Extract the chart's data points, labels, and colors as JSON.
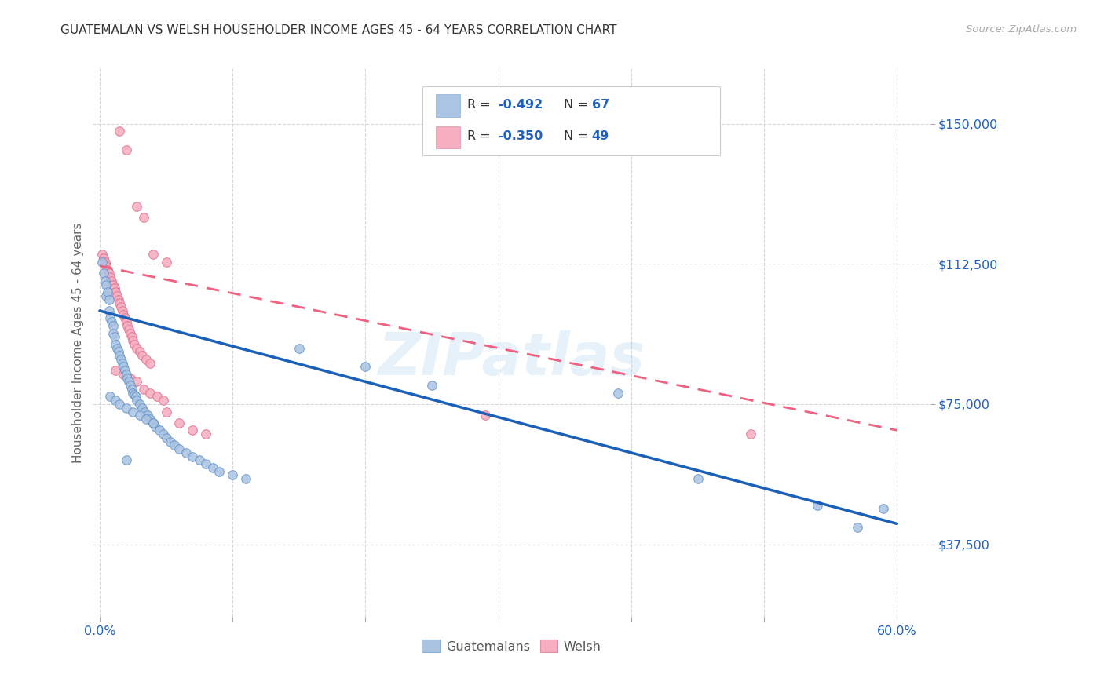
{
  "title": "GUATEMALAN VS WELSH HOUSEHOLDER INCOME AGES 45 - 64 YEARS CORRELATION CHART",
  "source": "Source: ZipAtlas.com",
  "ylabel": "Householder Income Ages 45 - 64 years",
  "ytick_labels": [
    "$37,500",
    "$75,000",
    "$112,500",
    "$150,000"
  ],
  "ytick_values": [
    37500,
    75000,
    112500,
    150000
  ],
  "ymin": 18000,
  "ymax": 165000,
  "xmin": -0.005,
  "xmax": 0.625,
  "watermark": "ZIPatlas",
  "guatemalan_color": "#aac4e2",
  "welsh_color": "#f5afc0",
  "guatemalan_line_color": "#1a5fb8",
  "welsh_line_color": "#f06080",
  "blue_accent": "#2060c0",
  "legend_r1_val": "-0.492",
  "legend_n1_val": "67",
  "legend_r2_val": "-0.350",
  "legend_n2_val": "49",
  "guatemalan_scatter": [
    [
      0.002,
      113000
    ],
    [
      0.003,
      110000
    ],
    [
      0.004,
      108000
    ],
    [
      0.005,
      107000
    ],
    [
      0.005,
      104000
    ],
    [
      0.006,
      105000
    ],
    [
      0.007,
      103000
    ],
    [
      0.007,
      100000
    ],
    [
      0.008,
      98000
    ],
    [
      0.009,
      97000
    ],
    [
      0.01,
      96000
    ],
    [
      0.01,
      94000
    ],
    [
      0.011,
      93000
    ],
    [
      0.012,
      91000
    ],
    [
      0.013,
      90000
    ],
    [
      0.014,
      89000
    ],
    [
      0.015,
      88000
    ],
    [
      0.016,
      87000
    ],
    [
      0.017,
      86000
    ],
    [
      0.018,
      85000
    ],
    [
      0.019,
      84000
    ],
    [
      0.02,
      83000
    ],
    [
      0.021,
      82000
    ],
    [
      0.022,
      81000
    ],
    [
      0.023,
      80000
    ],
    [
      0.024,
      79000
    ],
    [
      0.025,
      78000
    ],
    [
      0.026,
      77500
    ],
    [
      0.027,
      77000
    ],
    [
      0.028,
      76000
    ],
    [
      0.03,
      75000
    ],
    [
      0.032,
      74000
    ],
    [
      0.034,
      73000
    ],
    [
      0.036,
      72000
    ],
    [
      0.038,
      71000
    ],
    [
      0.04,
      70000
    ],
    [
      0.042,
      69000
    ],
    [
      0.045,
      68000
    ],
    [
      0.048,
      67000
    ],
    [
      0.05,
      66000
    ],
    [
      0.053,
      65000
    ],
    [
      0.056,
      64000
    ],
    [
      0.06,
      63000
    ],
    [
      0.065,
      62000
    ],
    [
      0.07,
      61000
    ],
    [
      0.075,
      60000
    ],
    [
      0.08,
      59000
    ],
    [
      0.085,
      58000
    ],
    [
      0.09,
      57000
    ],
    [
      0.1,
      56000
    ],
    [
      0.11,
      55000
    ],
    [
      0.008,
      77000
    ],
    [
      0.012,
      76000
    ],
    [
      0.015,
      75000
    ],
    [
      0.02,
      74000
    ],
    [
      0.025,
      73000
    ],
    [
      0.03,
      72000
    ],
    [
      0.035,
      71000
    ],
    [
      0.04,
      70000
    ],
    [
      0.15,
      90000
    ],
    [
      0.2,
      85000
    ],
    [
      0.25,
      80000
    ],
    [
      0.39,
      78000
    ],
    [
      0.45,
      55000
    ],
    [
      0.54,
      48000
    ],
    [
      0.57,
      42000
    ],
    [
      0.59,
      47000
    ],
    [
      0.02,
      60000
    ]
  ],
  "welsh_scatter": [
    [
      0.002,
      115000
    ],
    [
      0.003,
      114000
    ],
    [
      0.004,
      113000
    ],
    [
      0.005,
      112000
    ],
    [
      0.006,
      111000
    ],
    [
      0.007,
      110000
    ],
    [
      0.008,
      109000
    ],
    [
      0.009,
      108000
    ],
    [
      0.01,
      107000
    ],
    [
      0.011,
      106000
    ],
    [
      0.012,
      105000
    ],
    [
      0.013,
      104000
    ],
    [
      0.014,
      103000
    ],
    [
      0.015,
      102000
    ],
    [
      0.016,
      101000
    ],
    [
      0.017,
      100000
    ],
    [
      0.018,
      99000
    ],
    [
      0.019,
      98000
    ],
    [
      0.02,
      97000
    ],
    [
      0.021,
      96000
    ],
    [
      0.022,
      95000
    ],
    [
      0.023,
      94000
    ],
    [
      0.024,
      93000
    ],
    [
      0.025,
      92000
    ],
    [
      0.026,
      91000
    ],
    [
      0.028,
      90000
    ],
    [
      0.03,
      89000
    ],
    [
      0.032,
      88000
    ],
    [
      0.035,
      87000
    ],
    [
      0.038,
      86000
    ],
    [
      0.015,
      148000
    ],
    [
      0.02,
      143000
    ],
    [
      0.028,
      128000
    ],
    [
      0.033,
      125000
    ],
    [
      0.04,
      115000
    ],
    [
      0.05,
      113000
    ],
    [
      0.012,
      84000
    ],
    [
      0.018,
      83000
    ],
    [
      0.023,
      82000
    ],
    [
      0.028,
      81000
    ],
    [
      0.033,
      79000
    ],
    [
      0.038,
      78000
    ],
    [
      0.043,
      77000
    ],
    [
      0.048,
      76000
    ],
    [
      0.05,
      73000
    ],
    [
      0.06,
      70000
    ],
    [
      0.07,
      68000
    ],
    [
      0.08,
      67000
    ],
    [
      0.29,
      72000
    ],
    [
      0.49,
      67000
    ]
  ]
}
